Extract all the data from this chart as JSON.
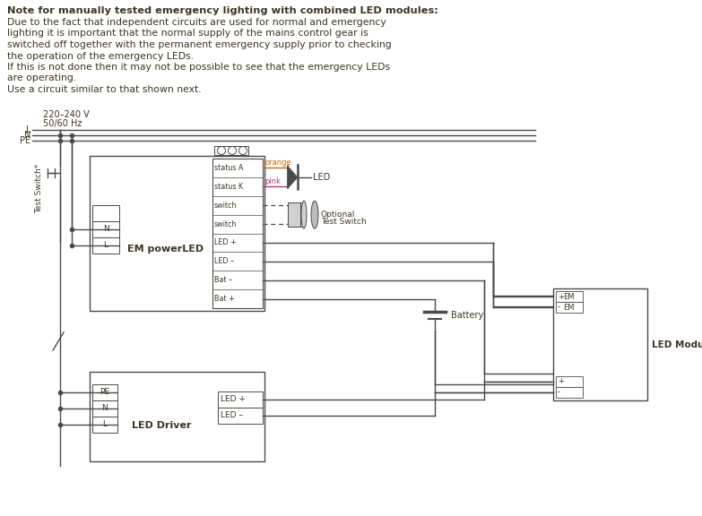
{
  "bg_color": "#ffffff",
  "text_color": "#3d3520",
  "line_color": "#4a4a4a",
  "title_bold": "Note for manually tested emergency lighting with combined LED modules:",
  "body_lines": [
    "Due to the fact that independent circuits are used for normal and emergency",
    "lighting it is important that the normal supply of the mains control gear is",
    "switched off together with the permanent emergency supply prior to checking",
    "the operation of the emergency LEDs.",
    "If this is not done then it may not be possible to see that the emergency LEDs",
    "are operating.",
    "Use a circuit similar to that shown next."
  ],
  "voltage_label": "220–240 V",
  "freq_label": "50/60 Hz",
  "orange_color": "#cc6600",
  "pink_color": "#bb3377"
}
